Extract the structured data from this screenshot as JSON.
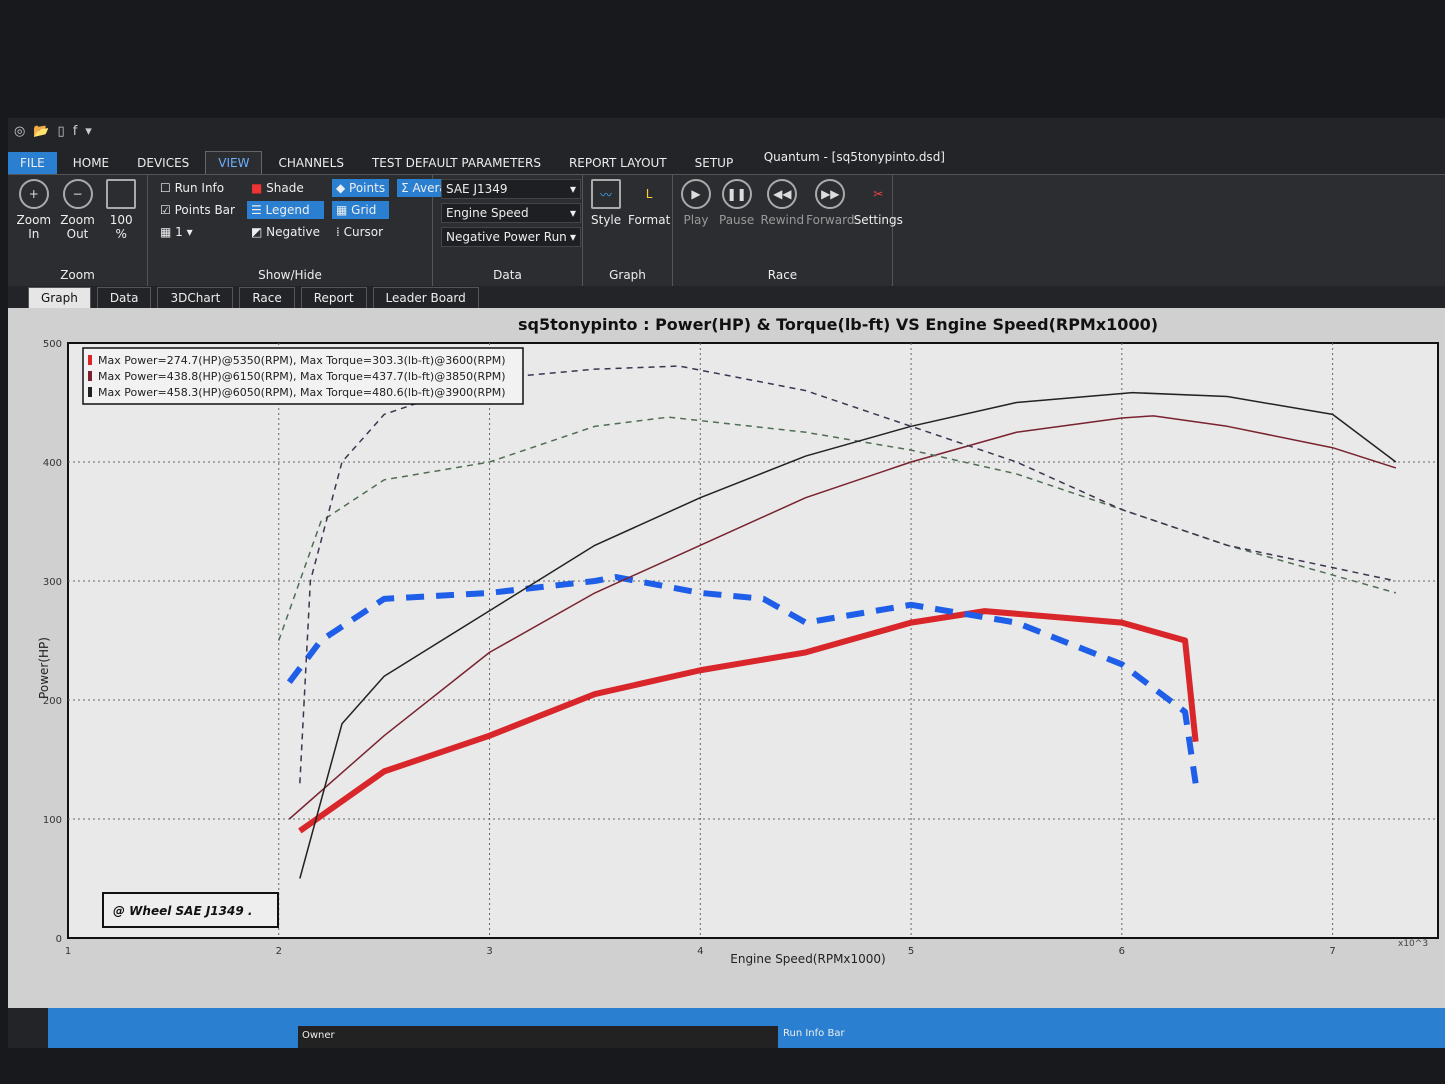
{
  "window": {
    "title": "Quantum - [sq5tonypinto.dsd]"
  },
  "menu_tabs": [
    "FILE",
    "HOME",
    "DEVICES",
    "VIEW",
    "CHANNELS",
    "TEST DEFAULT PARAMETERS",
    "REPORT LAYOUT",
    "SETUP"
  ],
  "ribbon": {
    "zoom": {
      "label": "Zoom",
      "zoom_in": "Zoom In",
      "zoom_out": "Zoom Out",
      "hundred": "100 %"
    },
    "showhide": {
      "label": "Show/Hide",
      "run_info": "Run Info",
      "run_info_checked": false,
      "points_bar": "Points Bar",
      "points_bar_checked": true,
      "count": "1",
      "shade": "Shade",
      "legend": "Legend",
      "negative": "Negative",
      "points": "Points",
      "grid": "Grid",
      "cursor": "Cursor",
      "average": "Average"
    },
    "data": {
      "label": "Data",
      "standard": "SAE J1349",
      "x_channel": "Engine Speed",
      "run_type": "Negative Power Run"
    },
    "graph": {
      "label": "Graph",
      "style": "Style",
      "format": "Format"
    },
    "race": {
      "label": "Race",
      "play": "Play",
      "pause": "Pause",
      "rewind": "Rewind",
      "forward": "Forward",
      "settings": "Settings"
    }
  },
  "doc_tabs": [
    "Graph",
    "Data",
    "3DChart",
    "Race",
    "Report",
    "Leader Board"
  ],
  "status": {
    "owner": "Owner",
    "run_info_bar": "Run Info Bar"
  },
  "chart_data": {
    "type": "line",
    "title": "sq5tonypinto : Power(HP) & Torque(lb-ft) VS Engine Speed(RPMx1000)",
    "xlabel": "Engine Speed(RPMx1000)",
    "ylabel": "Power(HP)",
    "xlim": [
      1,
      7.5
    ],
    "ylim": [
      0,
      500
    ],
    "xticks": [
      "1",
      "2",
      "3",
      "4",
      "5",
      "6",
      "7"
    ],
    "yticks": [
      "0",
      "100",
      "200",
      "300",
      "400",
      "500"
    ],
    "x_multiplier_label": "x10^3",
    "grid": true,
    "legend_position": "top-left",
    "annotation": "@ Wheel SAE J1349 .",
    "legend": [
      {
        "text": "Max Power=274.7(HP)@5350(RPM), Max Torque=303.3(lb-ft)@3600(RPM)",
        "color": "#d8262a"
      },
      {
        "text": "Max Power=438.8(HP)@6150(RPM), Max Torque=437.7(lb-ft)@3850(RPM)",
        "color": "#7a2230"
      },
      {
        "text": "Max Power=458.3(HP)@6050(RPM), Max Torque=480.6(lb-ft)@3900(RPM)",
        "color": "#222222"
      }
    ],
    "series": [
      {
        "run": 1,
        "kind": "power",
        "color": "#d8262a",
        "dash": false,
        "width": 6,
        "points": [
          [
            2.1,
            90
          ],
          [
            2.5,
            140
          ],
          [
            3,
            170
          ],
          [
            3.5,
            205
          ],
          [
            4,
            225
          ],
          [
            4.5,
            240
          ],
          [
            5,
            265
          ],
          [
            5.35,
            274.7
          ],
          [
            6,
            265
          ],
          [
            6.3,
            250
          ],
          [
            6.35,
            165
          ]
        ]
      },
      {
        "run": 1,
        "kind": "torque",
        "color": "#1e5ee8",
        "dash": true,
        "width": 6,
        "points": [
          [
            2.05,
            215
          ],
          [
            2.2,
            250
          ],
          [
            2.5,
            285
          ],
          [
            3,
            290
          ],
          [
            3.5,
            300
          ],
          [
            3.6,
            303.3
          ],
          [
            4,
            290
          ],
          [
            4.3,
            285
          ],
          [
            4.5,
            265
          ],
          [
            5,
            280
          ],
          [
            5.5,
            265
          ],
          [
            6,
            230
          ],
          [
            6.3,
            190
          ],
          [
            6.35,
            130
          ]
        ]
      },
      {
        "run": 2,
        "kind": "power",
        "color": "#7a2230",
        "dash": false,
        "width": 1.5,
        "points": [
          [
            2.05,
            100
          ],
          [
            2.5,
            170
          ],
          [
            3,
            240
          ],
          [
            3.5,
            290
          ],
          [
            4,
            330
          ],
          [
            4.5,
            370
          ],
          [
            5,
            400
          ],
          [
            5.5,
            425
          ],
          [
            6,
            437
          ],
          [
            6.15,
            438.8
          ],
          [
            6.5,
            430
          ],
          [
            7,
            412
          ],
          [
            7.3,
            395
          ]
        ]
      },
      {
        "run": 2,
        "kind": "torque",
        "color": "#4f6e55",
        "dash": true,
        "width": 1.5,
        "points": [
          [
            2,
            250
          ],
          [
            2.2,
            350
          ],
          [
            2.5,
            385
          ],
          [
            3,
            400
          ],
          [
            3.5,
            430
          ],
          [
            3.85,
            437.7
          ],
          [
            4.5,
            425
          ],
          [
            5,
            410
          ],
          [
            5.5,
            390
          ],
          [
            6,
            360
          ],
          [
            6.5,
            330
          ],
          [
            7.3,
            290
          ]
        ]
      },
      {
        "run": 3,
        "kind": "power",
        "color": "#222222",
        "dash": false,
        "width": 1.5,
        "points": [
          [
            2.1,
            50
          ],
          [
            2.3,
            180
          ],
          [
            2.5,
            220
          ],
          [
            3,
            275
          ],
          [
            3.5,
            330
          ],
          [
            4,
            370
          ],
          [
            4.5,
            405
          ],
          [
            5,
            430
          ],
          [
            5.5,
            450
          ],
          [
            6.05,
            458.3
          ],
          [
            6.5,
            455
          ],
          [
            7,
            440
          ],
          [
            7.3,
            400
          ]
        ]
      },
      {
        "run": 3,
        "kind": "torque",
        "color": "#3d3550",
        "dash": true,
        "width": 1.5,
        "points": [
          [
            2.1,
            130
          ],
          [
            2.15,
            300
          ],
          [
            2.3,
            400
          ],
          [
            2.5,
            440
          ],
          [
            3,
            470
          ],
          [
            3.5,
            478
          ],
          [
            3.9,
            480.6
          ],
          [
            4.5,
            460
          ],
          [
            5,
            430
          ],
          [
            5.5,
            400
          ],
          [
            6,
            360
          ],
          [
            6.5,
            330
          ],
          [
            7.3,
            300
          ]
        ]
      }
    ]
  }
}
